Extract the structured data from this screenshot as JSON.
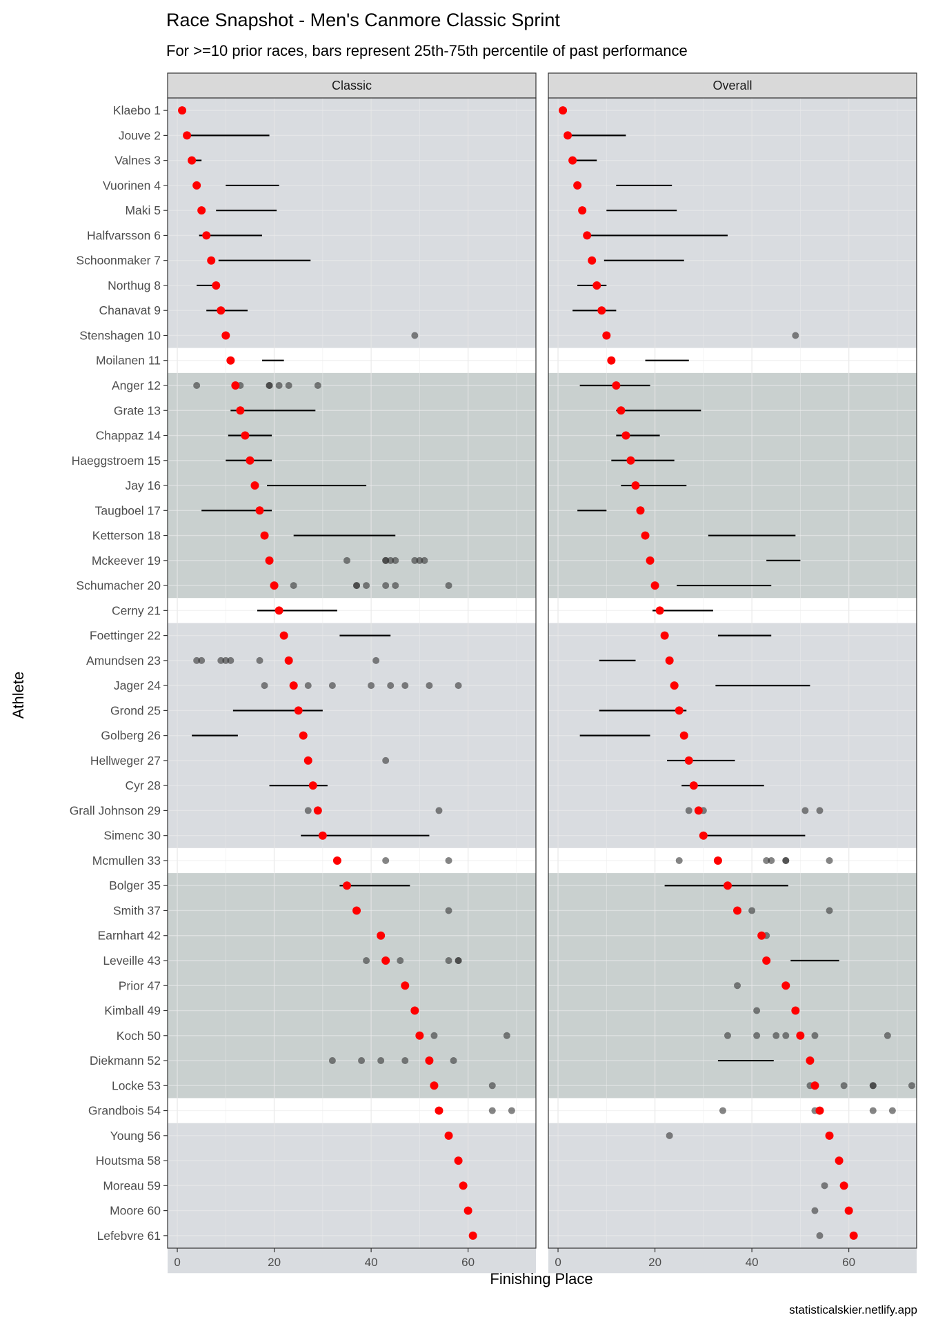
{
  "title": "Race Snapshot -  Men's Canmore Classic Sprint",
  "subtitle": "For >=10 prior races, bars represent 25th-75th percentile of past performance",
  "caption": "statisticalskier.netlify.app",
  "chart_data": {
    "type": "scatter",
    "xlabel": "Finishing Place",
    "ylabel": "Athlete",
    "xlim": [
      -2,
      74
    ],
    "x_ticks": [
      0,
      20,
      40,
      60
    ],
    "grid": true,
    "colors": {
      "current": "#ff0000",
      "history": "#333333",
      "band_a": "#d9dce0",
      "band_b": "#c9d0cf",
      "strip": "#d9d9d9"
    },
    "bands": [
      {
        "from": 1,
        "to": 10,
        "color": "band_a"
      },
      {
        "from": 12,
        "to": 20,
        "color": "band_b"
      },
      {
        "from": 22,
        "to": 30,
        "color": "band_a"
      },
      {
        "from": 32,
        "to": 40,
        "color": "band_b"
      },
      {
        "from": 42,
        "to": 47,
        "color": "band_a"
      }
    ],
    "athletes": [
      "Klaebo 1",
      "Jouve 2",
      "Valnes 3",
      "Vuorinen 4",
      "Maki 5",
      "Halfvarsson 6",
      "Schoonmaker 7",
      "Northug 8",
      "Chanavat 9",
      "Stenshagen 10",
      "Moilanen 11",
      "Anger 12",
      "Grate 13",
      "Chappaz 14",
      "Haeggstroem 15",
      "Jay 16",
      "Taugboel 17",
      "Ketterson 18",
      "Mckeever 19",
      "Schumacher 20",
      "Cerny 21",
      "Foettinger 22",
      "Amundsen 23",
      "Jager 24",
      "Grond 25",
      "Golberg 26",
      "Hellweger 27",
      "Cyr 28",
      "Grall Johnson 29",
      "Simenc 30",
      "Mcmullen 33",
      "Bolger 35",
      "Smith 37",
      "Earnhart 42",
      "Leveille 43",
      "Prior 47",
      "Kimball 49",
      "Koch 50",
      "Diekmann 52",
      "Locke 53",
      "Grandbois 54",
      "Young 56",
      "Houtsma 58",
      "Moreau 59",
      "Moore 60",
      "Lefebvre 61"
    ],
    "current_place": [
      1,
      2,
      3,
      4,
      5,
      6,
      7,
      8,
      9,
      10,
      11,
      12,
      13,
      14,
      15,
      16,
      17,
      18,
      19,
      20,
      21,
      22,
      23,
      24,
      25,
      26,
      27,
      28,
      29,
      30,
      33,
      35,
      37,
      42,
      43,
      47,
      49,
      50,
      52,
      53,
      54,
      56,
      58,
      59,
      60,
      61
    ],
    "panels": [
      {
        "name": "Classic",
        "bars": [
          null,
          [
            2,
            19
          ],
          [
            2.5,
            5
          ],
          [
            10,
            21
          ],
          [
            8,
            20.5
          ],
          [
            4.5,
            17.5
          ],
          [
            8.5,
            27.5
          ],
          [
            4,
            8
          ],
          [
            6,
            14.5
          ],
          null,
          [
            17.5,
            22
          ],
          [
            null,
            null
          ],
          [
            11,
            28.5
          ],
          [
            10.5,
            19.5
          ],
          [
            10,
            19.5
          ],
          [
            18.5,
            39
          ],
          [
            5,
            19.5
          ],
          [
            24,
            45
          ],
          null,
          null,
          [
            16.5,
            33
          ],
          [
            33.5,
            44
          ],
          null,
          null,
          [
            11.5,
            30
          ],
          [
            3,
            12.5
          ],
          null,
          [
            19,
            31
          ],
          null,
          [
            25.5,
            52
          ],
          null,
          [
            33.5,
            48
          ],
          null,
          null,
          null,
          null,
          null,
          null,
          null,
          null,
          null,
          null,
          null,
          null,
          null,
          null
        ],
        "history": [
          [],
          [],
          [],
          [],
          [],
          [],
          [],
          [],
          [],
          [
            49
          ],
          [],
          [
            4,
            13,
            19,
            19,
            21,
            23,
            29
          ],
          [],
          [],
          [],
          [],
          [],
          [],
          [
            35,
            43,
            43,
            44,
            45,
            49,
            50,
            51
          ],
          [
            24,
            37,
            37,
            39,
            43,
            45,
            56
          ],
          [],
          [],
          [
            4,
            5,
            9,
            10,
            11,
            17,
            41
          ],
          [
            18,
            27,
            32,
            40,
            44,
            47,
            52,
            58
          ],
          [],
          [],
          [
            43
          ],
          [],
          [
            27,
            54
          ],
          [],
          [
            43,
            56
          ],
          [],
          [
            56
          ],
          [],
          [
            39,
            46,
            56,
            58,
            58
          ],
          [],
          [],
          [
            53,
            68
          ],
          [
            32,
            38,
            42,
            47,
            57
          ],
          [
            65
          ],
          [
            65,
            69
          ],
          [],
          [],
          [],
          [],
          []
        ]
      },
      {
        "name": "Overall",
        "bars": [
          null,
          [
            2,
            14
          ],
          [
            2.5,
            8
          ],
          [
            12,
            23.5
          ],
          [
            10,
            24.5
          ],
          [
            6,
            35
          ],
          [
            9.5,
            26
          ],
          [
            4,
            10
          ],
          [
            3,
            12
          ],
          null,
          [
            18,
            27
          ],
          [
            4.5,
            19
          ],
          [
            12,
            29.5
          ],
          [
            12,
            21
          ],
          [
            11,
            24
          ],
          [
            13,
            26.5
          ],
          [
            4,
            10
          ],
          [
            31,
            49
          ],
          [
            43,
            50
          ],
          [
            24.5,
            44
          ],
          [
            19.5,
            32
          ],
          [
            33,
            44
          ],
          [
            8.5,
            16
          ],
          [
            32.5,
            52
          ],
          [
            8.5,
            26.5
          ],
          [
            4.5,
            19
          ],
          [
            22.5,
            36.5
          ],
          [
            25.5,
            42.5
          ],
          null,
          [
            30,
            51
          ],
          null,
          [
            22,
            47.5
          ],
          null,
          null,
          [
            48,
            58
          ],
          null,
          null,
          null,
          [
            33,
            44.5
          ],
          null,
          null,
          null,
          null,
          null,
          null,
          null
        ],
        "history": [
          [],
          [],
          [],
          [],
          [],
          [],
          [],
          [],
          [],
          [
            49
          ],
          [],
          [],
          [],
          [],
          [],
          [],
          [],
          [],
          [],
          [],
          [],
          [],
          [],
          [],
          [],
          [],
          [],
          [],
          [
            27,
            30,
            51,
            54
          ],
          [
            30
          ],
          [
            25,
            43,
            44,
            47,
            47,
            56
          ],
          [],
          [
            40,
            56
          ],
          [
            43
          ],
          [],
          [
            37
          ],
          [
            41
          ],
          [
            35,
            41,
            45,
            47,
            53,
            68
          ],
          [],
          [
            52,
            59,
            65,
            65,
            73
          ],
          [
            34,
            53,
            65,
            69
          ],
          [
            23
          ],
          [],
          [
            55
          ],
          [
            53
          ],
          [
            54
          ]
        ]
      }
    ]
  }
}
